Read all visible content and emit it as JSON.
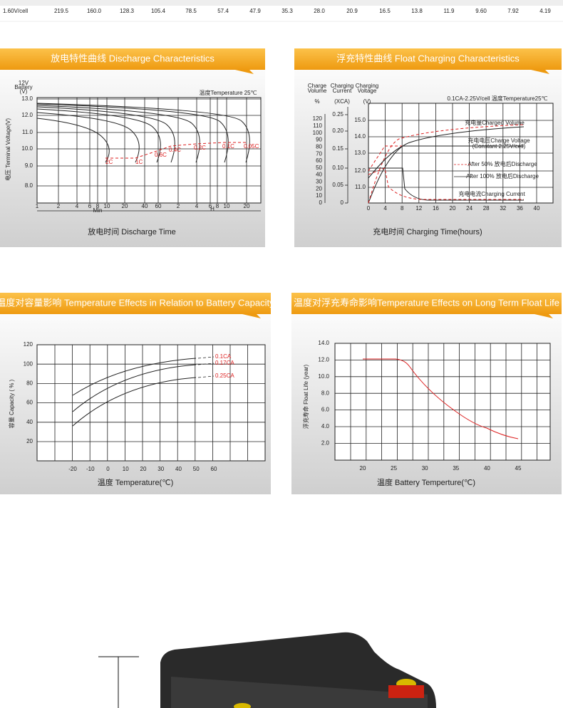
{
  "table_row": {
    "label": "1.60V/cell",
    "values": [
      "219.5",
      "160.0",
      "128.3",
      "105.4",
      "78.5",
      "57.4",
      "47.9",
      "35.3",
      "28.0",
      "20.9",
      "16.5",
      "13.8",
      "11.9",
      "9.60",
      "7.92",
      "4.19"
    ]
  },
  "discharge": {
    "title": "放电特性曲线 Discharge Characteristics",
    "y_unit": [
      "12V",
      "Battery",
      "(V)"
    ],
    "y_label": "电压 Terminal Voltage(V)",
    "yticks": [
      "13.0",
      "12.0",
      "11.0",
      "10.0",
      "9.0",
      "8.0"
    ],
    "xticks": [
      "1",
      "2",
      "4",
      "6",
      "8",
      "10",
      "20",
      "40",
      "60",
      "2",
      "4",
      "6",
      "8",
      "10",
      "20"
    ],
    "min": "Min",
    "h": "H",
    "note": "温度Temperature 25℃",
    "curve_labels": [
      "2C",
      "1C",
      "0.6C",
      "0.4C",
      "0.2C",
      "0.1C",
      "0.05C"
    ],
    "x_label": "放电时间 Discharge Time"
  },
  "float": {
    "title": "浮充特性曲线 Float Charging Characteristics",
    "headers": [
      [
        "Charge",
        "Volume",
        "%"
      ],
      [
        "Charging",
        "Current",
        "(XCA)"
      ],
      [
        "Charging",
        "Voltage",
        "(V)"
      ]
    ],
    "volume_ticks": [
      "120",
      "110",
      "100",
      "90",
      "80",
      "70",
      "60",
      "50",
      "40",
      "30",
      "20",
      "10",
      "0"
    ],
    "current_ticks": [
      "0.25",
      "0.20",
      "0.15",
      "0.10",
      "0.05",
      "0"
    ],
    "voltage_ticks": [
      "15.0",
      "14.0",
      "13.0",
      "12.0",
      "11.0"
    ],
    "xticks": [
      "0",
      "4",
      "8",
      "12",
      "16",
      "20",
      "24",
      "28",
      "32",
      "36",
      "40"
    ],
    "note": "0.1CA-2.25V/cell  温度Temperature25℃",
    "legend": [
      "充电量Charged Volume",
      "充电电压Charge Voltage",
      "(Constant 2.25V/cell)",
      "After 50% 放电后Discharge",
      "After 100% 放电后Discharge",
      "充电电流Charging Current"
    ],
    "x_label": "充电时间 Charging Time(hours)"
  },
  "capacity": {
    "title": "温度对容量影响 Temperature Effects in Relation to Battery Capacity",
    "yticks": [
      "120",
      "100",
      "80",
      "60",
      "40",
      "20"
    ],
    "xticks": [
      "-20",
      "-10",
      "0",
      "10",
      "20",
      "30",
      "40",
      "50",
      "60"
    ],
    "curve_labels": [
      "0.1CA",
      "0.17CA",
      "0.25CA"
    ],
    "y_label": "容量 Capacity ( % )",
    "x_label": "温度 Temperature(℃)"
  },
  "life": {
    "title": "温度对浮充寿命影响Temperature Effects on Long Term Float Life",
    "yticks": [
      "14.0",
      "12.0",
      "10.0",
      "8.0",
      "6.0",
      "4.0",
      "2.0"
    ],
    "xticks": [
      "20",
      "25",
      "30",
      "35",
      "40",
      "45"
    ],
    "y_label": "浮充寿命 Float Life (year)",
    "x_label": "温度 Battery Temperture(℃)"
  }
}
